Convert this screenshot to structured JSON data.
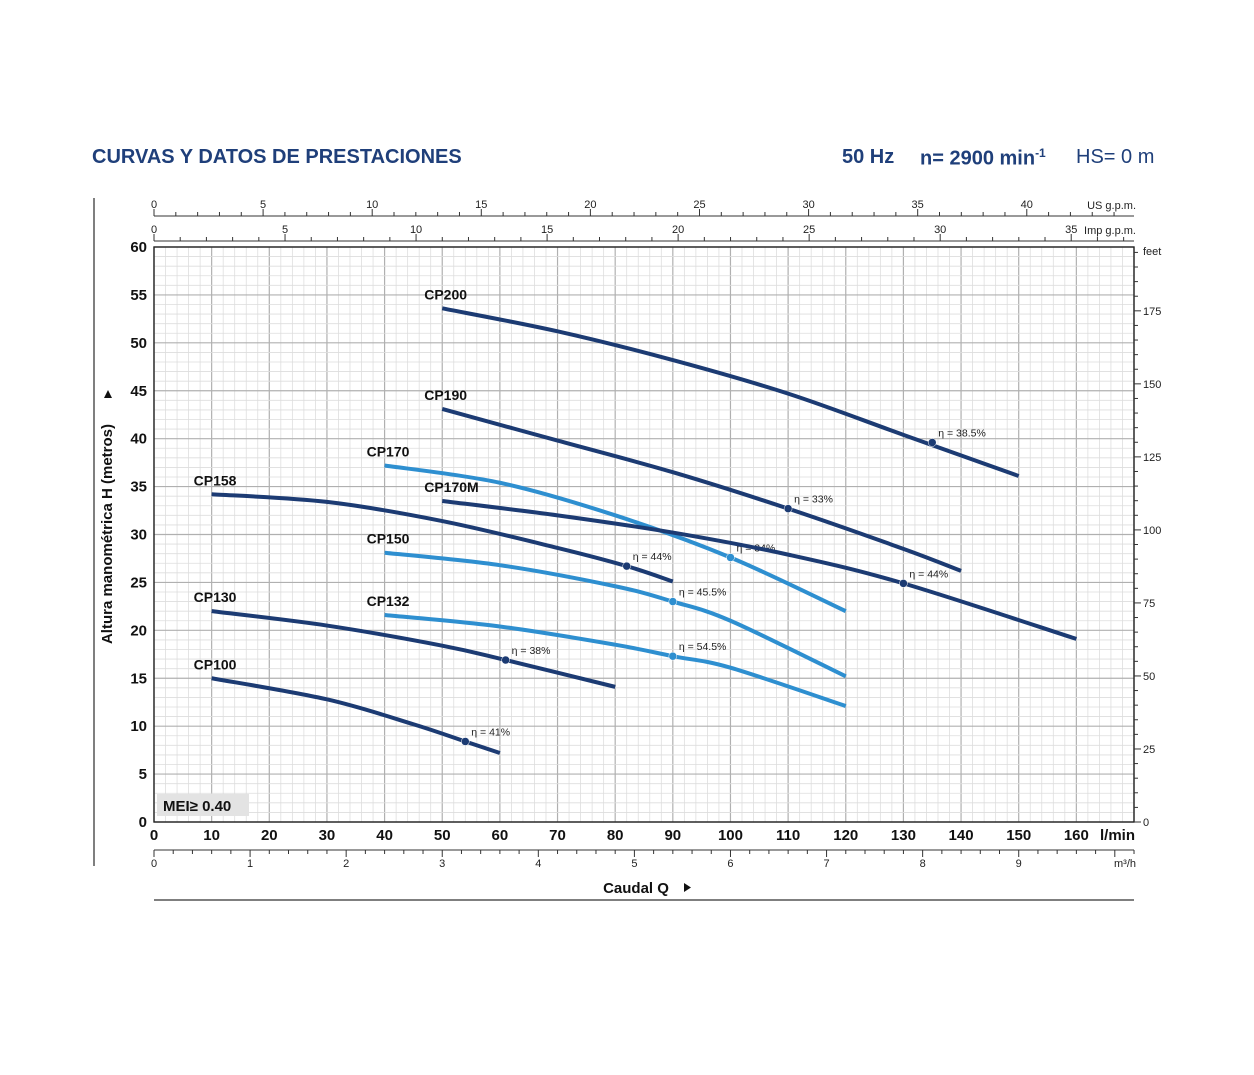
{
  "header": {
    "title": "CURVAS Y DATOS DE PRESTACIONES",
    "frequency": "50 Hz",
    "speed": "n= 2900 min",
    "speed_exp": "-1",
    "hs": "HS= 0 m"
  },
  "colors": {
    "dark": "#1c3b73",
    "light": "#2e8fd0",
    "header": "#1f3f7a"
  },
  "chart_data": {
    "type": "line",
    "xlabel": "Caudal  Q",
    "ylabel": "Altura manométrica H (metros)",
    "xlim": [
      0,
      170
    ],
    "ylim": [
      0,
      60
    ],
    "grid": true,
    "x_unit": "l/min",
    "x_ticks": [
      0,
      10,
      20,
      30,
      40,
      50,
      60,
      70,
      80,
      90,
      100,
      110,
      120,
      130,
      140,
      150,
      160
    ],
    "y_ticks": [
      0,
      5,
      10,
      15,
      20,
      25,
      30,
      35,
      40,
      45,
      50,
      55,
      60
    ],
    "secondary_axes": {
      "us_gpm": {
        "label": "US g.p.m.",
        "factor": 3.785,
        "ticks": [
          0,
          5,
          10,
          15,
          20,
          25,
          30,
          35,
          40
        ]
      },
      "imp_gpm": {
        "label": "Imp g.p.m.",
        "factor": 4.546,
        "ticks": [
          0,
          5,
          10,
          15,
          20,
          25,
          30,
          35
        ]
      },
      "m3h": {
        "label": "m³/h",
        "factor": 16.667,
        "ticks": [
          0,
          1,
          2,
          3,
          4,
          5,
          6,
          7,
          8,
          9
        ]
      },
      "feet": {
        "label": "feet",
        "factor": 0.3048,
        "ticks": [
          0,
          25,
          50,
          75,
          100,
          125,
          150,
          175
        ]
      }
    },
    "mei": "MEI≥ 0.40",
    "series": [
      {
        "name": "CP200",
        "color": "dark",
        "x": [
          50,
          70,
          90,
          110,
          130,
          150
        ],
        "y": [
          53.6,
          51.2,
          48.2,
          44.7,
          40.4,
          36.1
        ],
        "eff": {
          "x": 135,
          "y": 39.6,
          "label": "η = 38.5%"
        }
      },
      {
        "name": "CP190",
        "color": "dark",
        "x": [
          50,
          70,
          90,
          110,
          130,
          140
        ],
        "y": [
          43.1,
          39.8,
          36.5,
          32.7,
          28.5,
          26.2
        ],
        "eff": {
          "x": 110,
          "y": 32.7,
          "label": "η = 33%"
        }
      },
      {
        "name": "CP170",
        "color": "light",
        "x": [
          40,
          60,
          80,
          100,
          120
        ],
        "y": [
          37.2,
          35.4,
          32.0,
          27.6,
          22.0
        ],
        "eff": {
          "x": 100,
          "y": 27.6,
          "label": "η = 34%"
        }
      },
      {
        "name": "CP170M",
        "color": "dark",
        "x": [
          50,
          70,
          90,
          110,
          130,
          160
        ],
        "y": [
          33.5,
          32.0,
          30.2,
          27.9,
          24.9,
          19.1
        ],
        "eff": {
          "x": 130,
          "y": 24.9,
          "label": "η = 44%"
        }
      },
      {
        "name": "CP158",
        "color": "dark",
        "x": [
          10,
          30,
          50,
          70,
          82,
          90
        ],
        "y": [
          34.2,
          33.4,
          31.4,
          28.6,
          26.7,
          25.1
        ],
        "eff": {
          "x": 82,
          "y": 26.7,
          "label": "η = 44%"
        }
      },
      {
        "name": "CP150",
        "color": "light",
        "x": [
          40,
          60,
          80,
          90,
          100,
          120
        ],
        "y": [
          28.1,
          26.8,
          24.6,
          23.0,
          21.0,
          15.2
        ],
        "eff": {
          "x": 90,
          "y": 23.0,
          "label": "η = 45.5%"
        }
      },
      {
        "name": "CP130",
        "color": "dark",
        "x": [
          10,
          30,
          50,
          61,
          80
        ],
        "y": [
          22.0,
          20.5,
          18.4,
          16.9,
          14.1
        ],
        "eff": {
          "x": 61,
          "y": 16.9,
          "label": "η = 38%"
        }
      },
      {
        "name": "CP132",
        "color": "light",
        "x": [
          40,
          60,
          80,
          90,
          100,
          120
        ],
        "y": [
          21.6,
          20.4,
          18.5,
          17.3,
          16.1,
          12.1
        ],
        "eff": {
          "x": 90,
          "y": 17.3,
          "label": "η = 54.5%"
        }
      },
      {
        "name": "CP100",
        "color": "dark",
        "x": [
          10,
          30,
          45,
          54,
          60
        ],
        "y": [
          15.0,
          12.8,
          10.2,
          8.4,
          7.2
        ],
        "eff": {
          "x": 54,
          "y": 8.4,
          "label": "η = 41%"
        }
      }
    ]
  }
}
